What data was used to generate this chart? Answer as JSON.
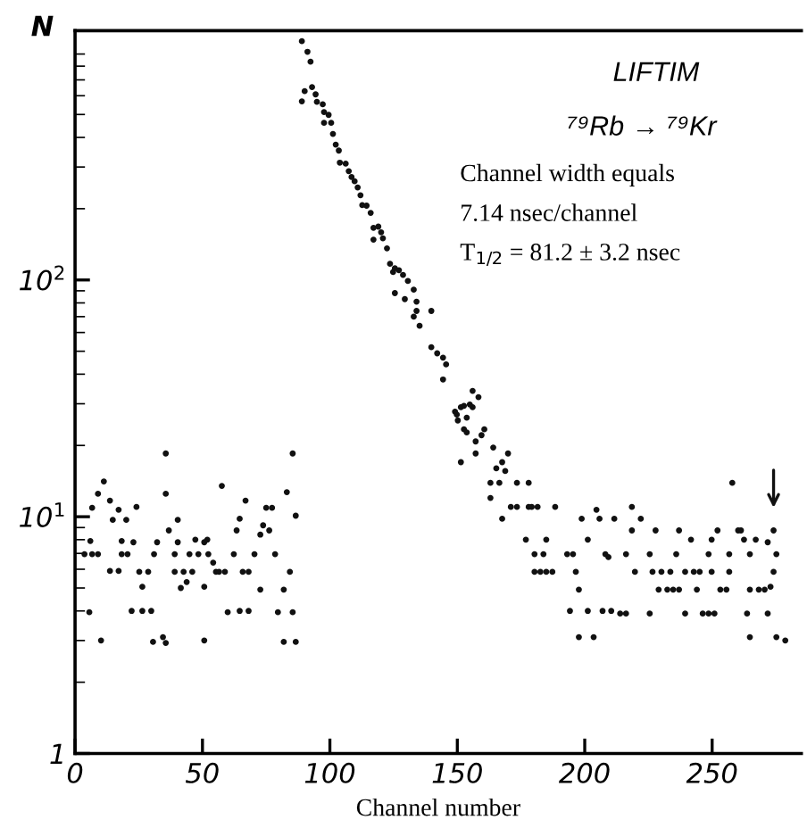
{
  "chart_data": {
    "type": "scatter",
    "xlabel": "Channel number",
    "ylabel": "N",
    "annotations": [
      "LIFTIM",
      "⁷⁹Rb → ⁷⁹Kr",
      "Channel width equals",
      "7.14 nsec/channel",
      "T$_{1/2}$ = 81.2 ± 3.2 nsec"
    ],
    "log": true,
    "xlim": [
      0,
      285
    ],
    "ylim": [
      1,
      1130
    ],
    "xticks": [
      0,
      50,
      100,
      150,
      200,
      250
    ],
    "yticks": [
      {
        "value": 1,
        "label": "1"
      },
      {
        "value": 10,
        "label": "10$^{1}$"
      },
      {
        "value": 100,
        "label": "10$^{2}$"
      }
    ],
    "grid": false,
    "legend": false,
    "marker": "circle",
    "series": [
      {
        "color": "#111111",
        "x": [
          3.7,
          5.6,
          6,
          6.7,
          6.7,
          9,
          9,
          10.2,
          11.3,
          13.7,
          13.7,
          14.8,
          17.1,
          17.1,
          18.3,
          18.3,
          20.1,
          20.6,
          22.2,
          22.9,
          24.1,
          25.2,
          26.4,
          26.4,
          28.7,
          29.9,
          30.6,
          31,
          32.2,
          34.5,
          35.6,
          35.6,
          35.6,
          36.8,
          39.1,
          39.1,
          40.3,
          40.3,
          41.5,
          42.6,
          43.8,
          44.9,
          46,
          47.2,
          48.4,
          50.7,
          50.7,
          50.7,
          52.3,
          51.9,
          54.2,
          55.3,
          56.5,
          57.6,
          58.8,
          59.9,
          62.3,
          63.4,
          64.6,
          64.6,
          65.8,
          66.9,
          68.1,
          68.1,
          70.4,
          72.7,
          72.7,
          73.8,
          75,
          76.2,
          77.3,
          78.5,
          79.6,
          81.9,
          81.9,
          83.1,
          84.3,
          85.4,
          85.4,
          86.6,
          86.6,
          89,
          91.2,
          92.4,
          89,
          90.1,
          93,
          94.4,
          94.9,
          97.2,
          97.7,
          99.5,
          97.7,
          100.5,
          101.2,
          102.3,
          103.5,
          103.9,
          106.2,
          107.4,
          108.5,
          109.7,
          110.9,
          112,
          112.7,
          114.4,
          116,
          117.1,
          119,
          120.1,
          117.1,
          120.8,
          122.4,
          123.6,
          124.8,
          125.5,
          127.1,
          128.7,
          125.5,
          130.6,
          132.9,
          129.4,
          134,
          134,
          139.8,
          132.9,
          135.2,
          139.8,
          142.1,
          144.4,
          145.6,
          144.4,
          156,
          158.3,
          156,
          151.4,
          149.1,
          149.8,
          152.6,
          154.9,
          153.7,
          150.2,
          152.6,
          153.7,
          151.4,
          157.2,
          159.5,
          160.6,
          157.2,
          164.1,
          169.9,
          167.6,
          165.3,
          168.8,
          163,
          166.5,
          173.4,
          178,
          163,
          167.6,
          171,
          173.4,
          178,
          179.2,
          181.5,
          176.9,
          184.9,
          180.3,
          183.8,
          180.3,
          182.6,
          184.9,
          187.3,
          188.4,
          193.1,
          195.4,
          196.5,
          197.7,
          194.2,
          201.2,
          207,
          210.4,
          213.9,
          216.2,
          197.7,
          203.5,
          198.8,
          204.6,
          205.8,
          211.6,
          201.2,
          208.1,
          209.3,
          216.2,
          218.5,
          219.7,
          222,
          218.5,
          225.5,
          226.6,
          227.8,
          229,
          230.1,
          232.4,
          234.7,
          237,
          233.6,
          235.9,
          237,
          239.4,
          241.7,
          242.8,
          244,
          245.1,
          225.5,
          239.4,
          246.3,
          248.6,
          250.9,
          248.6,
          249.8,
          249.8,
          252.1,
          253.2,
          255.6,
          256.7,
          256.7,
          257.9,
          260.2,
          261.3,
          262.5,
          263.7,
          264.8,
          267.1,
          264.8,
          268.3,
          270.6,
          272.9,
          274.1,
          275.2,
          274.1,
          271.8,
          264.8,
          271.8,
          275.2,
          278.7
        ],
        "values": [
          6.95,
          3.95,
          7.9,
          10.9,
          6.95,
          12.5,
          6.95,
          3.0,
          14.1,
          11.7,
          5.9,
          9.7,
          10.7,
          5.9,
          7.9,
          6.95,
          9.7,
          6.95,
          4.0,
          7.8,
          11,
          5.85,
          5.06,
          4.0,
          5.85,
          4.0,
          2.96,
          6.95,
          7.8,
          3.1,
          2.93,
          18.5,
          12.5,
          8.75,
          6.95,
          5.85,
          7.8,
          9.7,
          5.0,
          5.85,
          5.3,
          6.95,
          5.85,
          8.0,
          6.95,
          7.8,
          3.0,
          5.06,
          6.95,
          8.0,
          6.4,
          5.85,
          5.85,
          13.5,
          5.85,
          3.95,
          6.95,
          8.75,
          4.0,
          9.8,
          5.85,
          11.7,
          4.0,
          5.85,
          6.95,
          8.4,
          4.92,
          9.2,
          10.9,
          8.75,
          10.9,
          6.95,
          3.95,
          4.92,
          2.96,
          12.7,
          5.85,
          18.5,
          3.95,
          2.96,
          10.1,
          1020,
          920,
          835,
          568,
          627,
          652,
          608,
          565,
          552,
          512,
          498,
          461,
          461,
          414,
          373,
          352,
          313,
          310,
          288,
          272,
          261,
          246,
          228,
          207,
          206,
          192,
          166,
          168,
          159,
          148,
          150,
          136,
          117,
          108,
          112,
          110,
          105,
          88,
          99,
          91,
          83,
          81,
          74,
          74,
          70,
          64,
          52,
          49,
          47,
          44,
          38,
          34,
          32,
          29,
          29,
          27.8,
          27,
          29.4,
          29.8,
          26.2,
          25.5,
          23.4,
          22.7,
          17,
          20.8,
          22.1,
          23.4,
          18.5,
          19.6,
          18.5,
          17,
          16,
          15.6,
          13.9,
          13.9,
          13.9,
          13.9,
          12,
          9.8,
          11,
          11,
          11,
          11,
          11,
          8.0,
          8.0,
          6.95,
          6.95,
          5.85,
          5.85,
          5.85,
          5.85,
          11,
          6.95,
          6.95,
          5.85,
          4.92,
          4.0,
          4.0,
          4.0,
          4.0,
          3.9,
          3.9,
          3.1,
          3.1,
          9.8,
          10.7,
          9.8,
          9.8,
          8.0,
          6.95,
          6.75,
          6.95,
          11,
          5.85,
          9.8,
          8.75,
          6.95,
          5.85,
          8.75,
          4.92,
          5.85,
          4.92,
          4.92,
          4.92,
          5.85,
          6.95,
          8.75,
          5.85,
          8.0,
          5.85,
          4.92,
          5.85,
          3.9,
          3.9,
          3.9,
          3.9,
          3.9,
          6.95,
          5.85,
          8.0,
          8.75,
          4.92,
          4.92,
          5.85,
          6.95,
          13.9,
          8.75,
          8.75,
          8.0,
          3.9,
          6.95,
          8.0,
          4.92,
          4.92,
          4.92,
          5.06,
          5.85,
          6.95,
          8.75,
          7.8,
          3.1,
          3.9,
          3.1,
          3.0
        ]
      }
    ]
  }
}
